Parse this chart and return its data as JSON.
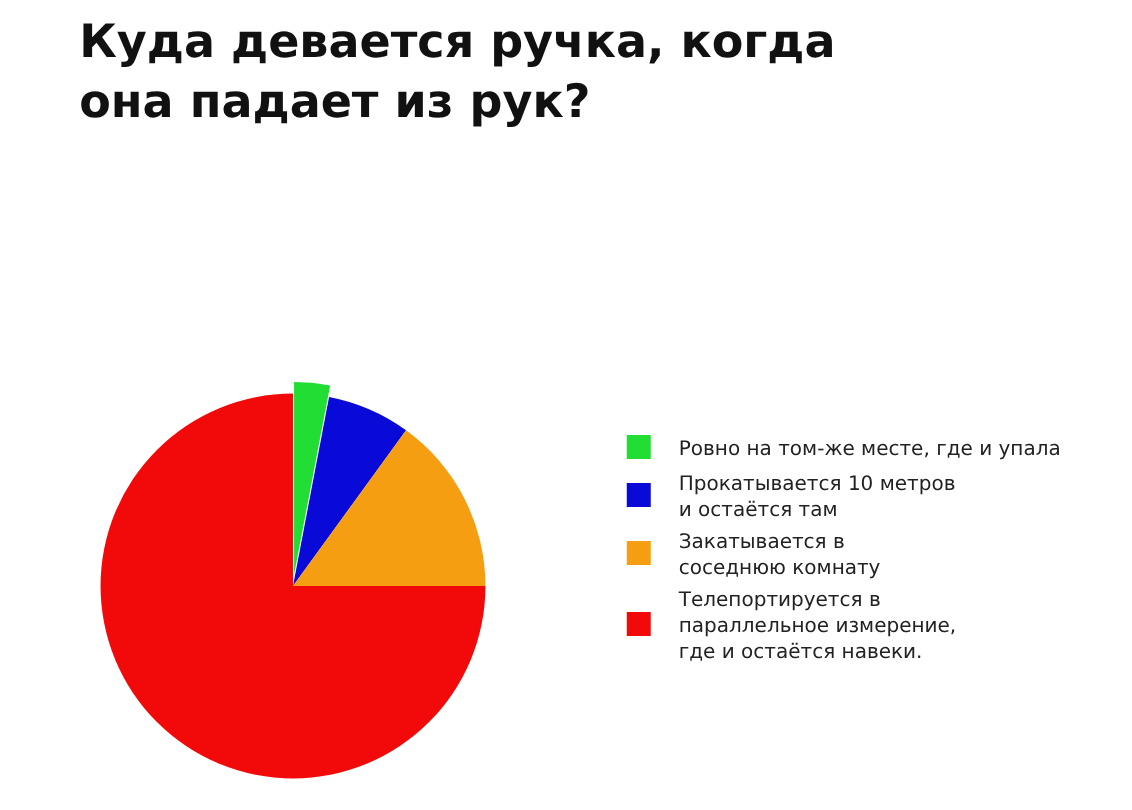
{
  "chart_data": {
    "type": "pie",
    "title": "Куда девается ручка, когда\nона падает из рук?",
    "categories": [
      "Ровно на том-же месте, где и упала",
      "Прокатывается 10 метров\nи остаётся там",
      "Закатывается в\nсоседнюю комнату",
      "Телепортируется в\nпараллельное измерение,\nгде и остаётся навеки."
    ],
    "values": [
      3,
      7,
      15,
      75
    ],
    "colors": [
      "#22dd33",
      "#0a0ad8",
      "#f59e12",
      "#f20a0a"
    ],
    "legend": "right"
  }
}
